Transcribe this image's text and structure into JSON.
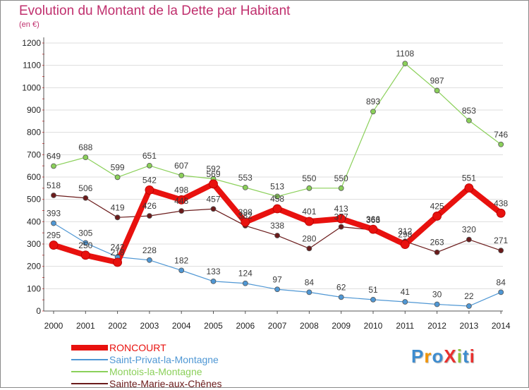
{
  "title": "Evolution du Montant de la Dette par Habitant",
  "unit": "(en €)",
  "logo": {
    "text": "ProXiti",
    "letter_colors": [
      "#3d8ccf",
      "#f29400",
      "#3d8ccf",
      "#e8312f",
      "#8fc13d",
      "#3d8ccf",
      "#e8312f"
    ]
  },
  "colors": {
    "title": "#c0306e",
    "axis": "#555555",
    "grid": "#dddddd"
  },
  "chart_data": {
    "type": "line",
    "title": "Evolution du Montant de la Dette par Habitant",
    "ylabel": "(en €)",
    "xlabel": "",
    "ylim": [
      0,
      1200
    ],
    "yticks": [
      0,
      100,
      200,
      300,
      400,
      500,
      600,
      700,
      800,
      900,
      1000,
      1100,
      1200
    ],
    "grid": true,
    "legend_position": "bottom-left",
    "x": [
      "2000",
      "2001",
      "2002",
      "2003",
      "2004",
      "2005",
      "2006",
      "2007",
      "2008",
      "2009",
      "2010",
      "2011",
      "2012",
      "2013",
      "2014"
    ],
    "series": [
      {
        "name": "RONCOURT",
        "color": "#e8110e",
        "values": [
          295,
          250,
          218,
          542,
          498,
          569,
          398,
          458,
          401,
          413,
          366,
          298,
          425,
          551,
          438
        ]
      },
      {
        "name": "Saint-Privat-la-Montagne",
        "color": "#4f97d4",
        "values": [
          393,
          305,
          242,
          228,
          182,
          133,
          124,
          97,
          84,
          62,
          51,
          41,
          30,
          22,
          84
        ]
      },
      {
        "name": "Montois-la-Montagne",
        "color": "#8bd05a",
        "values": [
          649,
          688,
          599,
          651,
          607,
          592,
          553,
          513,
          550,
          550,
          893,
          1108,
          987,
          853,
          746
        ]
      },
      {
        "name": "Sainte-Marie-aux-Chênes",
        "color": "#6b1b1b",
        "values": [
          518,
          506,
          419,
          426,
          448,
          457,
          382,
          338,
          280,
          377,
          363,
          312,
          263,
          320,
          271
        ]
      }
    ]
  }
}
